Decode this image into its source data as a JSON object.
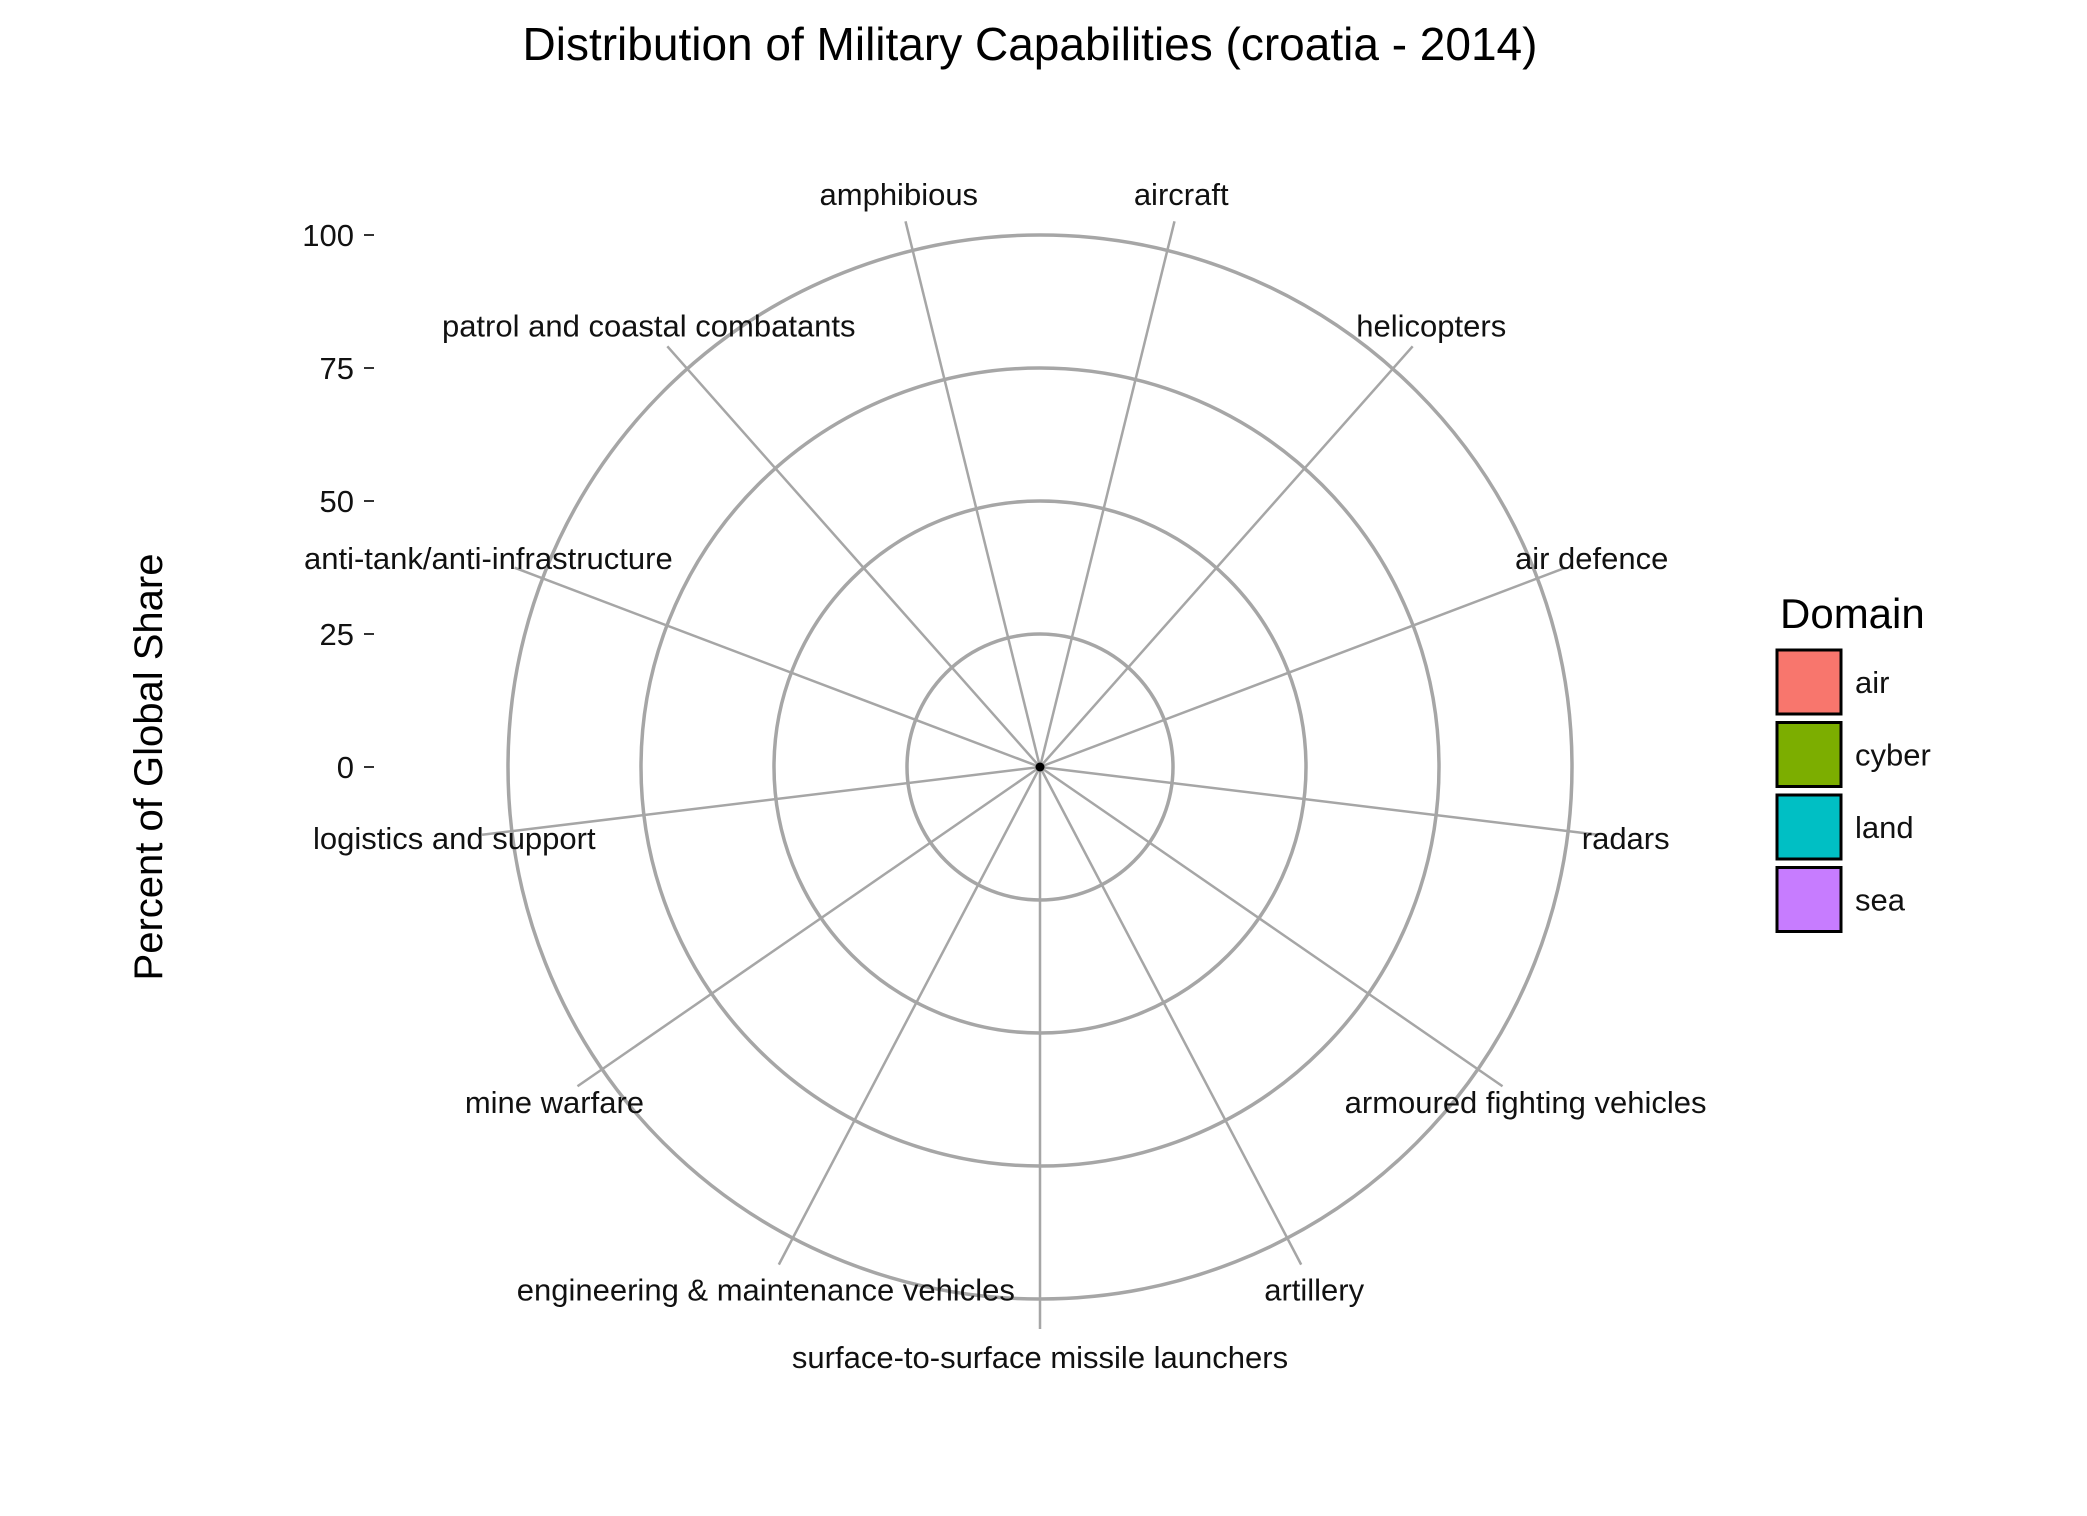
{
  "chart_data": {
    "type": "bar",
    "coord": "polar",
    "title": "Distribution of Military Capabilities (croatia - 2014)",
    "ylabel": "Percent of Global Share",
    "xlabel": "",
    "ylim": [
      0,
      100
    ],
    "yticks": [
      0,
      25,
      50,
      75,
      100
    ],
    "categories": [
      "aircraft",
      "helicopters",
      "air defence",
      "radars",
      "armoured fighting vehicles",
      "artillery",
      "surface-to-surface missile launchers",
      "engineering & maintenance vehicles",
      "mine warfare",
      "logistics and support",
      "anti-tank/anti-infrastructure",
      "patrol and coastal combatants",
      "amphibious"
    ],
    "values": [
      0,
      0,
      0,
      0,
      0,
      0,
      0,
      0,
      0,
      0,
      0,
      0,
      0
    ],
    "legend": {
      "title": "Domain",
      "position": "right",
      "entries": [
        {
          "label": "air",
          "color": "#F8766D"
        },
        {
          "label": "cyber",
          "color": "#7CAE00"
        },
        {
          "label": "land",
          "color": "#00BFC4"
        },
        {
          "label": "sea",
          "color": "#C77CFF"
        }
      ]
    },
    "grid": true
  }
}
